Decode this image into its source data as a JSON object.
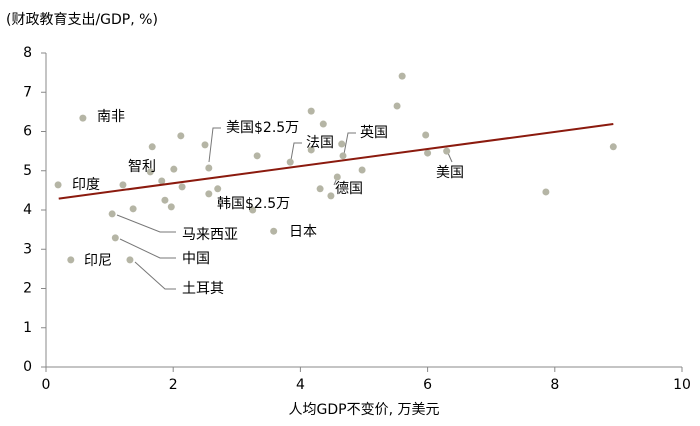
{
  "chart_data": {
    "type": "scatter",
    "title": "(财政教育支出/GDP, %)",
    "x_label": "人均GDP不变价, 万美元",
    "x": [
      0.19,
      0.58,
      0.39,
      1.04,
      1.09,
      1.21,
      1.32,
      1.37,
      1.64,
      1.67,
      1.82,
      1.87,
      1.97,
      2.01,
      2.12,
      2.14,
      2.5,
      2.56,
      2.56,
      2.7,
      3.32,
      3.25,
      3.58,
      3.84,
      4.17,
      4.17,
      4.36,
      4.31,
      4.58,
      4.65,
      4.67,
      4.48,
      4.97,
      5.52,
      5.6,
      5.97,
      6.0,
      6.3,
      7.86,
      8.92
    ],
    "values": [
      4.64,
      6.34,
      2.73,
      3.9,
      3.29,
      4.64,
      2.73,
      4.03,
      4.97,
      5.61,
      4.74,
      4.25,
      4.08,
      5.04,
      5.89,
      4.59,
      5.66,
      5.07,
      4.41,
      4.54,
      5.38,
      4.0,
      3.46,
      5.22,
      6.52,
      5.53,
      6.19,
      4.54,
      4.84,
      5.68,
      5.38,
      4.36,
      5.02,
      6.65,
      7.41,
      5.91,
      5.45,
      5.5,
      4.46,
      5.61
    ],
    "color": "#b5b5a5",
    "trendline": {
      "x": [
        0.2,
        8.92
      ],
      "values": [
        4.29,
        6.19
      ],
      "color": "#8b1a0e"
    },
    "xlim": [
      0,
      10
    ],
    "xticks": [
      0,
      2,
      4,
      6,
      8,
      10
    ],
    "ylim": [
      0,
      8
    ],
    "yticks": [
      0,
      1,
      2,
      3,
      4,
      5,
      6,
      7,
      8
    ],
    "annotations": [
      {
        "text": "南非",
        "color": "#000000"
      },
      {
        "text": "印度",
        "color": "#000000"
      },
      {
        "text": "智利",
        "color": "#000000"
      },
      {
        "text": "印尼",
        "color": "#000000"
      },
      {
        "text": "马来西亚",
        "color": "#000000"
      },
      {
        "text": "中国",
        "color": "#000000"
      },
      {
        "text": "土耳其",
        "color": "#000000"
      },
      {
        "text": "美国$2.5万",
        "color": "#1f7fc4"
      },
      {
        "text": "韩国$2.5万",
        "color": "#1f7fc4"
      },
      {
        "text": "法国",
        "color": "#000000"
      },
      {
        "text": "英国",
        "color": "#000000"
      },
      {
        "text": "德国",
        "color": "#000000"
      },
      {
        "text": "日本",
        "color": "#000000"
      },
      {
        "text": "美国",
        "color": "#000000"
      }
    ]
  }
}
